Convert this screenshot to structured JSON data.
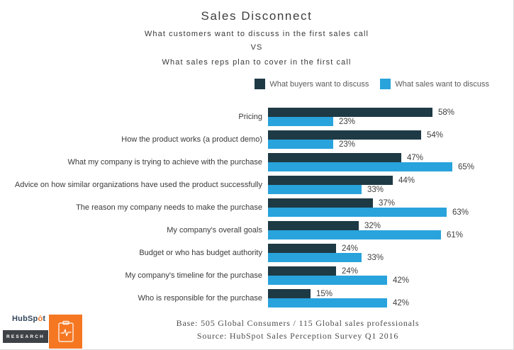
{
  "header": {
    "title": "Sales Disconnect",
    "subtitle1": "What customers want to discuss in the first sales call",
    "vs": "VS",
    "subtitle2": "What sales reps plan to cover in the first call"
  },
  "chart_data": {
    "type": "bar",
    "orientation": "horizontal",
    "title": "Sales Disconnect",
    "categories": [
      "Pricing",
      "How the product works (a product demo)",
      "What my company is trying to achieve with the purchase",
      "Advice on how similar organizations have used the product successfully",
      "The reason my company needs to make the purchase",
      "My company's overall goals",
      "Budget or who has budget authority",
      "My company's timeline for the purchase",
      "Who is responsible for the purchase"
    ],
    "series": [
      {
        "name": "What buyers want to discuss",
        "color": "#1e3a45",
        "values": [
          58,
          54,
          47,
          44,
          37,
          32,
          24,
          24,
          15
        ]
      },
      {
        "name": "What sales want to discuss",
        "color": "#29a3dc",
        "values": [
          23,
          23,
          65,
          33,
          63,
          61,
          33,
          42,
          42
        ]
      }
    ],
    "value_suffix": "%",
    "xlim": [
      0,
      70
    ],
    "grid": false,
    "legend_position": "top-right",
    "value_labels": "outside-end"
  },
  "footer": {
    "base": "Base: 505 Global Consumers / 115 Global sales professionals",
    "source": "Source: HubSpot Sales Perception Survey Q1 2016"
  },
  "logo": {
    "hubspot_parts": [
      "HubSp",
      "ȯ",
      "t"
    ],
    "research_label": "RESEARCH"
  },
  "colors": {
    "buyers_bar": "#1e3a45",
    "sales_bar": "#29a3dc",
    "hubspot_orange": "#f57722",
    "research_dark": "#3e4146"
  }
}
